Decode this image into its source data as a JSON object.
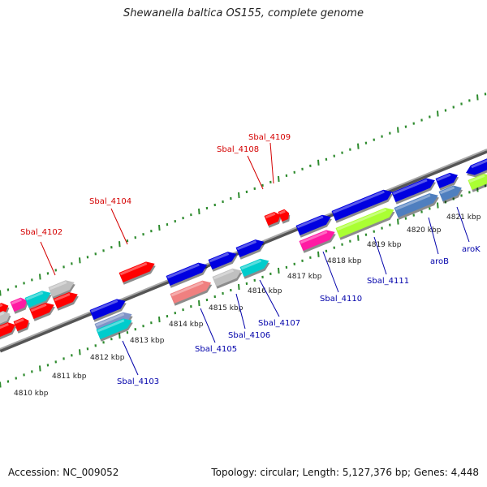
{
  "title": "Shewanella baltica OS155, complete genome",
  "footer": {
    "accession": "Accession: NC_009052",
    "topology": "Topology: circular; Length: 5,127,376 bp; Genes: 4,448"
  },
  "colors": {
    "backbone": "#8a8a8a",
    "tick": "#2e8b2e",
    "upper_label": "#d40000",
    "lower_label": "#0000aa",
    "red": "#ff0000",
    "blue": "#0000e0",
    "cyan": "#00cccc",
    "gray": "#c0c0c0",
    "magenta": "#ff1aa3",
    "salmon": "#f08080",
    "lime": "#aaff33",
    "steelblue": "#4f7fbf",
    "slate": "#7f93c7"
  },
  "kbp_labels": [
    "4810 kbp",
    "4811 kbp",
    "4812 kbp",
    "4813 kbp",
    "4814 kbp",
    "4815 kbp",
    "4816 kbp",
    "4817 kbp",
    "4818 kbp",
    "4819 kbp",
    "4820 kbp",
    "4821 kbp"
  ],
  "upper_gene_labels": [
    "Sbal_4102",
    "Sbal_4104",
    "Sbal_4108",
    "Sbal_4109"
  ],
  "lower_gene_labels": [
    "Sbal_4103",
    "Sbal_4105",
    "Sbal_4106",
    "Sbal_4107",
    "Sbal_4110",
    "Sbal_4111",
    "aroB",
    "aroK"
  ]
}
